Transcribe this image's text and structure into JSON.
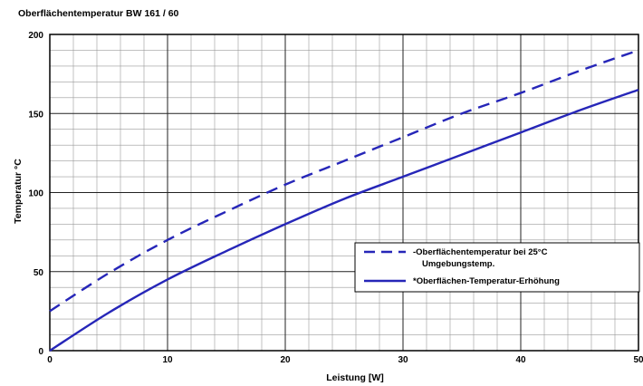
{
  "chart_data": {
    "type": "line",
    "title": "Oberflächentemperatur BW 161 / 60",
    "xlabel": "Leistung  [W]",
    "ylabel": "Temperatur °C",
    "xlim": [
      0,
      50
    ],
    "ylim": [
      0,
      200
    ],
    "x_ticks": [
      "0",
      "10",
      "20",
      "30",
      "40",
      "50"
    ],
    "y_ticks": [
      "0",
      "50",
      "100",
      "150",
      "200"
    ],
    "grid": true,
    "legend_position": "lower-right",
    "series": [
      {
        "name": "Oberflächentemperatur bei 25°C Umgebungstemp.",
        "legend_line1": "-Oberflächentemperatur bei 25°C",
        "legend_line2": "Umgebungstemp.",
        "style": "dashed",
        "color": "#2626b8",
        "x": [
          0,
          5,
          10,
          15,
          20,
          25,
          30,
          35,
          40,
          45,
          50
        ],
        "y": [
          25,
          49,
          70,
          88,
          105,
          120,
          135,
          150,
          163,
          177,
          190
        ]
      },
      {
        "name": "*Oberflächen-Temperatur-Erhöhung",
        "legend_line1": "*Oberflächen-Temperatur-Erhöhung",
        "style": "solid",
        "color": "#2626b8",
        "x": [
          0,
          5,
          10,
          15,
          20,
          25,
          30,
          35,
          40,
          45,
          50
        ],
        "y": [
          0,
          24,
          45,
          63,
          80,
          96,
          110,
          124,
          138,
          152,
          165
        ]
      }
    ]
  }
}
